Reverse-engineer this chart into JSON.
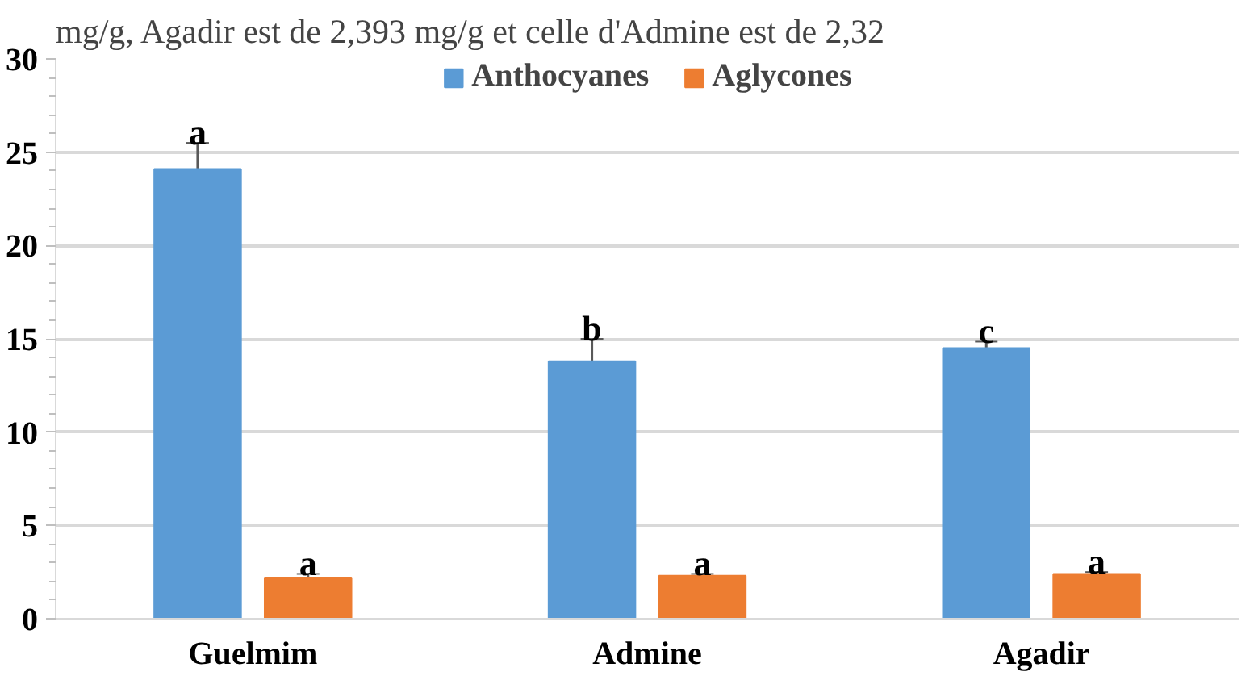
{
  "chart_data": {
    "type": "bar",
    "categories": [
      "Guelmim",
      "Admine",
      "Agadir"
    ],
    "series": [
      {
        "name": "Anthocyanes",
        "color": "#5b9bd5",
        "values": [
          24.1,
          13.8,
          14.5
        ],
        "errors": [
          1.4,
          1.2,
          0.35
        ]
      },
      {
        "name": "Aglycones",
        "color": "#ed7d31",
        "values": [
          2.2,
          2.3,
          2.4
        ],
        "errors": [
          0.2,
          0.1,
          0.1
        ]
      }
    ],
    "ylim": [
      0,
      30
    ],
    "yticks": [
      0,
      5,
      10,
      15,
      20,
      25,
      30
    ],
    "grid": "y",
    "legend": "top",
    "annotations": [
      "mg/g, Agadir est de 2,393 mg/g et celle d'Admine est de 2,32",
      "a",
      "a",
      "b",
      "a",
      "c",
      "a"
    ]
  }
}
